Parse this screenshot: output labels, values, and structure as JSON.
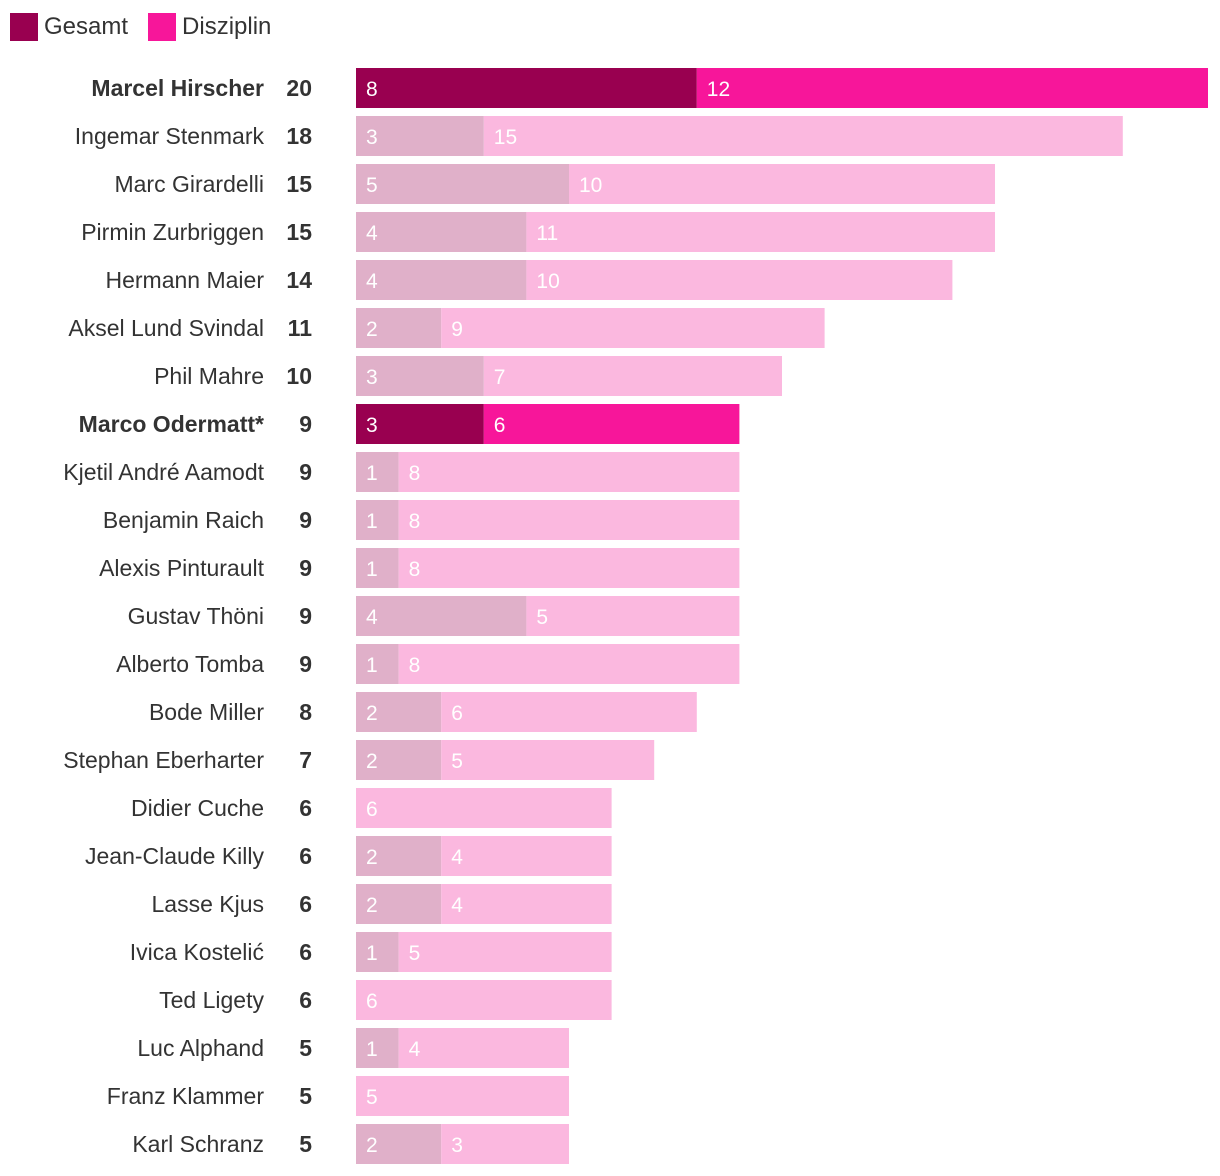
{
  "chart_data": {
    "type": "bar",
    "orientation": "horizontal",
    "stacked": true,
    "title": "",
    "xlabel": "",
    "ylabel": "",
    "xlim": [
      0,
      20
    ],
    "legend": {
      "position": "top-left",
      "entries": [
        "Gesamt",
        "Disziplin"
      ]
    },
    "colors": {
      "gesamt": "#990050",
      "disziplin": "#f7169a",
      "gesamt_muted": "#e0b0c9",
      "disziplin_muted": "#fbb8df"
    },
    "categories": [
      "Marcel Hirscher",
      "Ingemar Stenmark",
      "Marc Girardelli",
      "Pirmin Zurbriggen",
      "Hermann Maier",
      "Aksel Lund Svindal",
      "Phil Mahre",
      "Marco Odermatt*",
      "Kjetil André Aamodt",
      "Benjamin Raich",
      "Alexis Pinturault",
      "Gustav Thöni",
      "Alberto Tomba",
      "Bode Miller",
      "Stephan Eberharter",
      "Didier Cuche",
      "Jean-Claude Killy",
      "Lasse Kjus",
      "Ivica Kostelić",
      "Ted Ligety",
      "Luc Alphand",
      "Franz Klammer",
      "Karl Schranz"
    ],
    "highlighted": [
      "Marcel Hirscher",
      "Marco Odermatt*"
    ],
    "totals": [
      20,
      18,
      15,
      15,
      14,
      11,
      10,
      9,
      9,
      9,
      9,
      9,
      9,
      8,
      7,
      6,
      6,
      6,
      6,
      6,
      5,
      5,
      5
    ],
    "series": [
      {
        "name": "Gesamt",
        "values": [
          8,
          3,
          5,
          4,
          4,
          2,
          3,
          3,
          1,
          1,
          1,
          4,
          1,
          2,
          2,
          0,
          2,
          2,
          1,
          0,
          1,
          0,
          2
        ]
      },
      {
        "name": "Disziplin",
        "values": [
          12,
          15,
          10,
          11,
          10,
          9,
          7,
          6,
          8,
          8,
          8,
          5,
          8,
          6,
          5,
          6,
          4,
          4,
          5,
          6,
          4,
          5,
          3
        ]
      }
    ]
  }
}
